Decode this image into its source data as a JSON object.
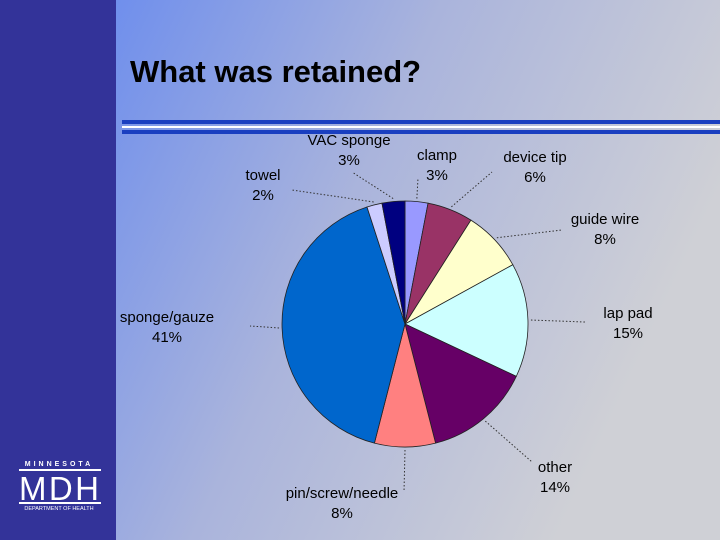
{
  "chart_data": {
    "type": "pie",
    "title": "What was retained?",
    "categories": [
      "clamp",
      "device tip",
      "guide wire",
      "lap pad",
      "other",
      "pin/screw/needle",
      "sponge/gauze",
      "towel",
      "VAC sponge"
    ],
    "values": [
      3,
      6,
      8,
      15,
      14,
      8,
      41,
      2,
      3
    ],
    "value_labels": [
      "3%",
      "6%",
      "8%",
      "15%",
      "14%",
      "8%",
      "41%",
      "2%",
      "3%"
    ],
    "colors": [
      "#9999ff",
      "#993366",
      "#ffffcc",
      "#ccffff",
      "#660066",
      "#ff8080",
      "#0066cc",
      "#ccccff",
      "#000080"
    ]
  },
  "logo": {
    "top": "MINNESOTA",
    "main": "MDH",
    "bottom": "DEPARTMENT OF HEALTH"
  }
}
